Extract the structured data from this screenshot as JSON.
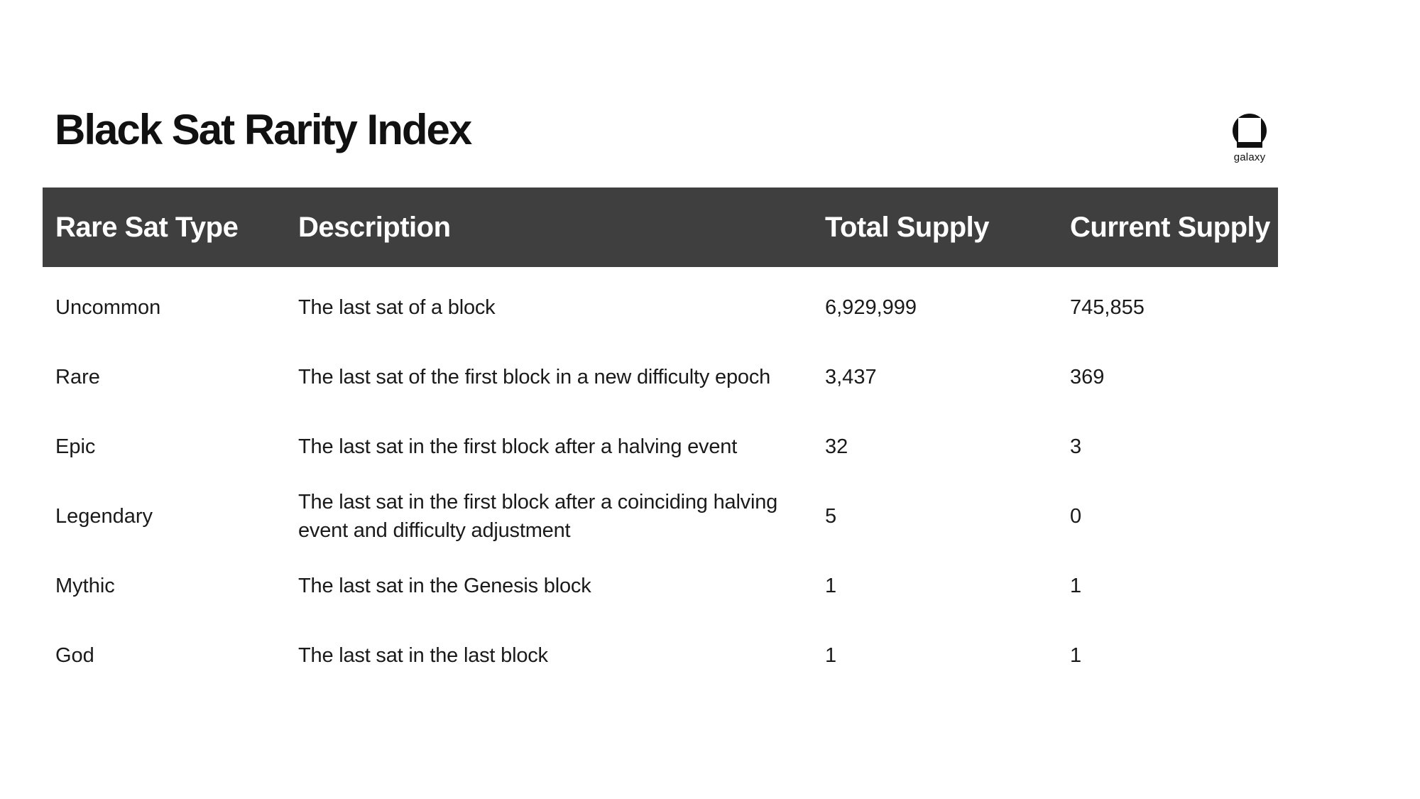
{
  "page": {
    "title": "Black Sat Rarity Index"
  },
  "logo": {
    "wordmark": "galaxy"
  },
  "table": {
    "columns": {
      "type": "Rare Sat Type",
      "description": "Description",
      "total_supply": "Total Supply",
      "current_supply": "Current Supply"
    },
    "rows": [
      {
        "type": "Uncommon",
        "description": "The last sat of a block",
        "total_supply": "6,929,999",
        "current_supply": "745,855"
      },
      {
        "type": "Rare",
        "description": "The last sat of the first block in a new difficulty epoch",
        "total_supply": "3,437",
        "current_supply": "369"
      },
      {
        "type": "Epic",
        "description": "The last sat in the first block after a halving event",
        "total_supply": "32",
        "current_supply": "3"
      },
      {
        "type": "Legendary",
        "description": "The last sat in the first block after a coinciding halving event and difficulty adjustment",
        "total_supply": "5",
        "current_supply": "0"
      },
      {
        "type": "Mythic",
        "description": "The last sat in the Genesis block",
        "total_supply": "1",
        "current_supply": "1"
      },
      {
        "type": "God",
        "description": "The last sat in the last block",
        "total_supply": "1",
        "current_supply": "1"
      }
    ]
  },
  "chart_data": {
    "type": "table",
    "title": "Black Sat Rarity Index",
    "columns": [
      "Rare Sat Type",
      "Description",
      "Total Supply",
      "Current Supply"
    ],
    "rows": [
      [
        "Uncommon",
        "The last sat of a block",
        "6,929,999",
        "745,855"
      ],
      [
        "Rare",
        "The last sat of the first block in a new difficulty epoch",
        "3,437",
        "369"
      ],
      [
        "Epic",
        "The last sat in the first block after a halving event",
        "32",
        "3"
      ],
      [
        "Legendary",
        "The last sat in the first block after a coinciding halving event and difficulty adjustment",
        "5",
        "0"
      ],
      [
        "Mythic",
        "The last sat in the Genesis block",
        "1",
        "1"
      ],
      [
        "God",
        "The last sat in the last block",
        "1",
        "1"
      ]
    ]
  },
  "colors": {
    "background": "#ffffff",
    "header_bg": "#3f3f3f",
    "header_text": "#ffffff",
    "body_text": "#1a1a1a",
    "accent_black": "#111111"
  }
}
